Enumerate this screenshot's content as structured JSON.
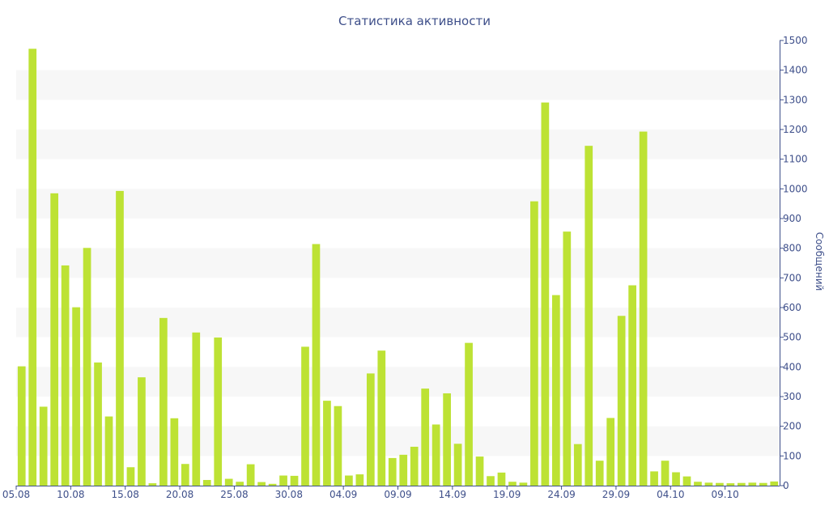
{
  "chart_data": {
    "type": "bar",
    "title": "Статистика активности",
    "ylabel": "Сообщений",
    "y_axis_side": "right",
    "ylim": [
      0,
      1500
    ],
    "y_ticks": [
      0,
      100,
      200,
      300,
      400,
      500,
      600,
      700,
      800,
      900,
      1000,
      1100,
      1200,
      1300,
      1400,
      1500
    ],
    "x_ticks": [
      {
        "label": "05.08",
        "index": 0
      },
      {
        "label": "10.08",
        "index": 5
      },
      {
        "label": "15.08",
        "index": 10
      },
      {
        "label": "20.08",
        "index": 15
      },
      {
        "label": "25.08",
        "index": 20
      },
      {
        "label": "30.08",
        "index": 25
      },
      {
        "label": "04.09",
        "index": 30
      },
      {
        "label": "09.09",
        "index": 35
      },
      {
        "label": "14.09",
        "index": 40
      },
      {
        "label": "19.09",
        "index": 45
      },
      {
        "label": "24.09",
        "index": 50
      },
      {
        "label": "29.09",
        "index": 55
      },
      {
        "label": "04.10",
        "index": 60
      },
      {
        "label": "09.10",
        "index": 65
      }
    ],
    "series": [
      {
        "color": "#bde234",
        "values": [
          402,
          1472,
          266,
          985,
          742,
          601,
          801,
          415,
          233,
          993,
          62,
          365,
          8,
          565,
          227,
          73,
          516,
          19,
          499,
          23,
          13,
          72,
          12,
          6,
          34,
          33,
          468,
          814,
          286,
          268,
          34,
          38,
          378,
          455,
          93,
          104,
          131,
          327,
          206,
          311,
          141,
          481,
          98,
          32,
          44,
          13,
          10,
          958,
          1291,
          642,
          856,
          140,
          1145,
          84,
          228,
          572,
          675,
          1193,
          48,
          84,
          45,
          31,
          13,
          10,
          9,
          8,
          9,
          10,
          9,
          14
        ]
      }
    ],
    "grid": "horizontal-bands",
    "band_color": "#f7f7f7",
    "axis_color": "#3e4f8a"
  }
}
